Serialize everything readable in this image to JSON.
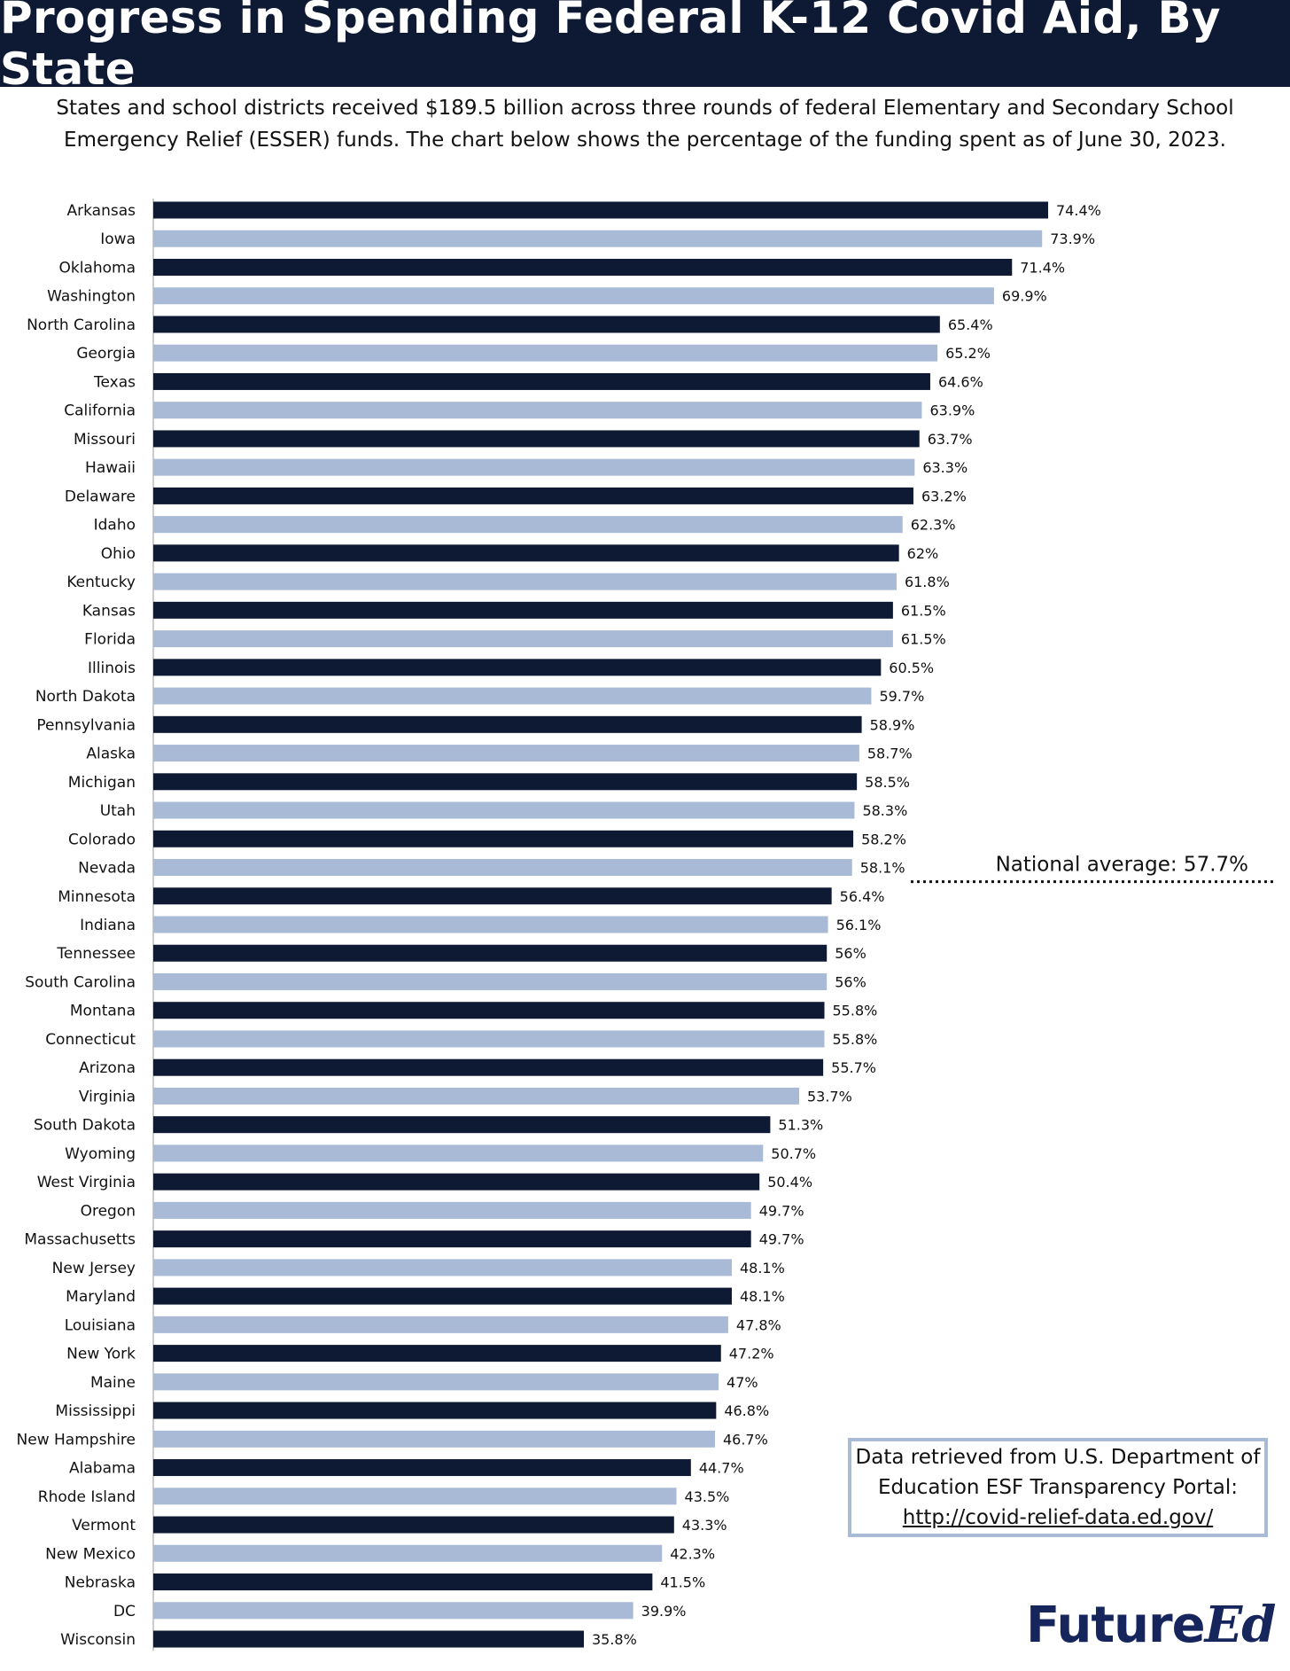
{
  "title": "Progress in Spending Federal K-12 Covid Aid, By State",
  "subtitle": "States and school districts received $189.5 billion across three rounds of federal Elementary and Secondary School Emergency Relief (ESSER) funds. The chart below shows the percentage of the funding spent as of June 30, 2023.",
  "colors": {
    "dark": "#0e1a33",
    "light": "#a9bad6",
    "header_bg": "#0e1a33",
    "logo": "#16255c"
  },
  "chart_data": {
    "type": "bar",
    "orientation": "horizontal",
    "categories": [
      "Arkansas",
      "Iowa",
      "Oklahoma",
      "Washington",
      "North Carolina",
      "Georgia",
      "Texas",
      "California",
      "Missouri",
      "Hawaii",
      "Delaware",
      "Idaho",
      "Ohio",
      "Kentucky",
      "Kansas",
      "Florida",
      "Illinois",
      "North Dakota",
      "Pennsylvania",
      "Alaska",
      "Michigan",
      "Utah",
      "Colorado",
      "Nevada",
      "Minnesota",
      "Indiana",
      "Tennessee",
      "South Carolina",
      "Montana",
      "Connecticut",
      "Arizona",
      "Virginia",
      "South Dakota",
      "Wyoming",
      "West Virginia",
      "Oregon",
      "Massachusetts",
      "New Jersey",
      "Maryland",
      "Louisiana",
      "New York",
      "Maine",
      "Mississippi",
      "New Hampshire",
      "Alabama",
      "Rhode Island",
      "Vermont",
      "New Mexico",
      "Nebraska",
      "DC",
      "Wisconsin"
    ],
    "values": [
      74.4,
      73.9,
      71.4,
      69.9,
      65.4,
      65.2,
      64.6,
      63.9,
      63.7,
      63.3,
      63.2,
      62.3,
      62,
      61.8,
      61.5,
      61.5,
      60.5,
      59.7,
      58.9,
      58.7,
      58.5,
      58.3,
      58.2,
      58.1,
      56.4,
      56.1,
      56,
      56,
      55.8,
      55.8,
      55.7,
      53.7,
      51.3,
      50.7,
      50.4,
      49.7,
      49.7,
      48.1,
      48.1,
      47.8,
      47.2,
      47,
      46.8,
      46.7,
      44.7,
      43.5,
      43.3,
      42.3,
      41.5,
      39.9,
      35.8
    ],
    "value_labels": [
      "74.4%",
      "73.9%",
      "71.4%",
      "69.9%",
      "65.4%",
      "65.2%",
      "64.6%",
      "63.9%",
      "63.7%",
      "63.3%",
      "63.2%",
      "62.3%",
      "62%",
      "61.8%",
      "61.5%",
      "61.5%",
      "60.5%",
      "59.7%",
      "58.9%",
      "58.7%",
      "58.5%",
      "58.3%",
      "58.2%",
      "58.1%",
      "56.4%",
      "56.1%",
      "56%",
      "56%",
      "55.8%",
      "55.8%",
      "55.7%",
      "53.7%",
      "51.3%",
      "50.7%",
      "50.4%",
      "49.7%",
      "49.7%",
      "48.1%",
      "48.1%",
      "47.8%",
      "47.2%",
      "47%",
      "46.8%",
      "46.7%",
      "44.7%",
      "43.5%",
      "43.3%",
      "42.3%",
      "41.5%",
      "39.9%",
      "35.8%"
    ],
    "xlim": [
      0,
      74.4
    ],
    "grid": false,
    "annotation": {
      "text": "National average: 57.7%",
      "value": 57.7
    }
  },
  "source": {
    "line1": "Data retrieved from U.S. Department of",
    "line2": "Education ESF Transparency Portal:",
    "url": "http://covid-relief-data.ed.gov/"
  },
  "logo": {
    "part1": "Future",
    "part2": "Ed"
  }
}
